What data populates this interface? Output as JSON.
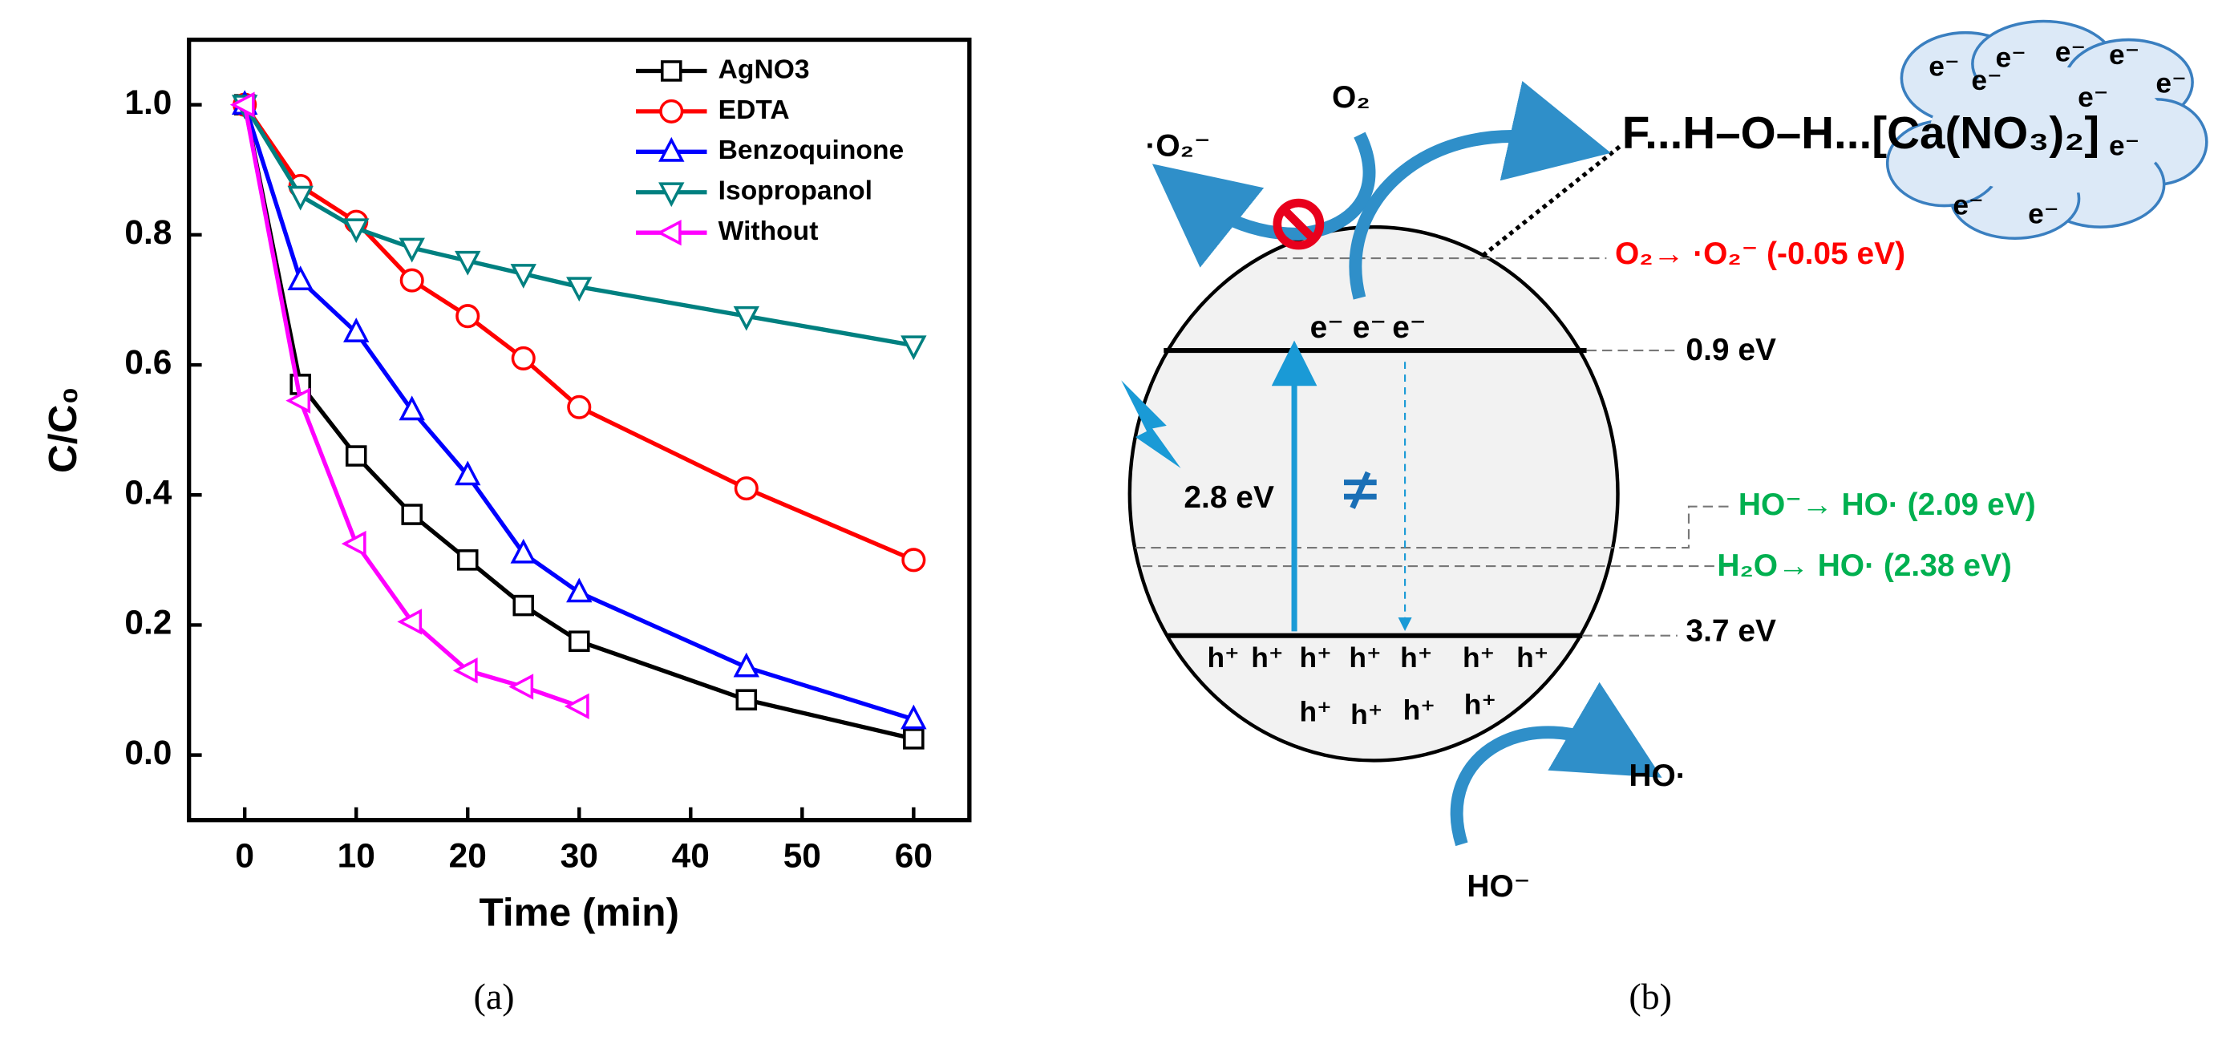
{
  "chart_data": {
    "type": "line",
    "xlabel": "Time (min)",
    "ylabel": "C/C₀",
    "xlim": [
      -5,
      65
    ],
    "xticks": [
      0,
      10,
      20,
      30,
      40,
      50,
      60
    ],
    "ylim": [
      -0.1,
      1.1
    ],
    "yticks": [
      {
        "value": 0,
        "label": "0.0"
      },
      0.2,
      0.4,
      0.6,
      0.8,
      {
        "value": 1,
        "label": "1.0"
      }
    ],
    "legend": "upper right",
    "series": [
      {
        "name": "AgNO3",
        "color": "#000000",
        "marker": "square",
        "x": [
          0,
          5,
          10,
          15,
          20,
          25,
          30,
          45,
          60
        ],
        "values": [
          1.0,
          0.57,
          0.46,
          0.37,
          0.3,
          0.23,
          0.175,
          0.085,
          0.025
        ]
      },
      {
        "name": "EDTA",
        "color": "#ff0000",
        "marker": "circle",
        "x": [
          0,
          5,
          10,
          15,
          20,
          25,
          30,
          45,
          60
        ],
        "values": [
          1.0,
          0.875,
          0.82,
          0.73,
          0.675,
          0.61,
          0.535,
          0.41,
          0.3
        ]
      },
      {
        "name": "Benzoquinone",
        "color": "#0000ff",
        "marker": "triangle-up",
        "x": [
          0,
          5,
          10,
          15,
          20,
          25,
          30,
          45,
          60
        ],
        "values": [
          1.0,
          0.73,
          0.65,
          0.53,
          0.43,
          0.31,
          0.25,
          0.135,
          0.055
        ]
      },
      {
        "name": "Isopropanol",
        "color": "#008080",
        "marker": "triangle-down",
        "x": [
          0,
          5,
          10,
          15,
          20,
          25,
          30,
          45,
          60
        ],
        "values": [
          1.0,
          0.86,
          0.81,
          0.78,
          0.76,
          0.74,
          0.72,
          0.675,
          0.63
        ]
      },
      {
        "name": "Without",
        "color": "#ff00ff",
        "marker": "triangle-left",
        "x": [
          0,
          5,
          10,
          15,
          20,
          25,
          30
        ],
        "values": [
          1.0,
          0.545,
          0.325,
          0.205,
          0.13,
          0.105,
          0.075
        ]
      }
    ]
  },
  "diagram": {
    "o2": "O₂",
    "superoxide": "·O₂⁻",
    "formula": "F...H–O–H...[Ca(NO₃)₂]",
    "cloud_electrons": [
      "e⁻",
      "e⁻",
      "e⁻",
      "e⁻",
      "e⁻",
      "e⁻",
      "e⁻",
      "e⁻",
      "e⁻",
      "e⁻"
    ],
    "o2_potential": "O₂→ ·O₂⁻ (-0.05 eV)",
    "cb": "0.9 eV",
    "vb": "3.7 eV",
    "gap": "2.8 eV",
    "electrons": [
      "e⁻",
      "e⁻",
      "e⁻"
    ],
    "ho_potential": "HO⁻→ HO· (2.09 eV)",
    "h2o_potential": "H₂O→ HO· (2.38 eV)",
    "holes": [
      "h⁺",
      "h⁺",
      "h⁺",
      "h⁺",
      "h⁺",
      "h⁺",
      "h⁺",
      "h⁺",
      "h⁺",
      "h⁺",
      "h⁺"
    ],
    "ho_radical": "HO·",
    "ho_anion": "HO⁻"
  },
  "captions": [
    "(a)",
    "(b)"
  ]
}
